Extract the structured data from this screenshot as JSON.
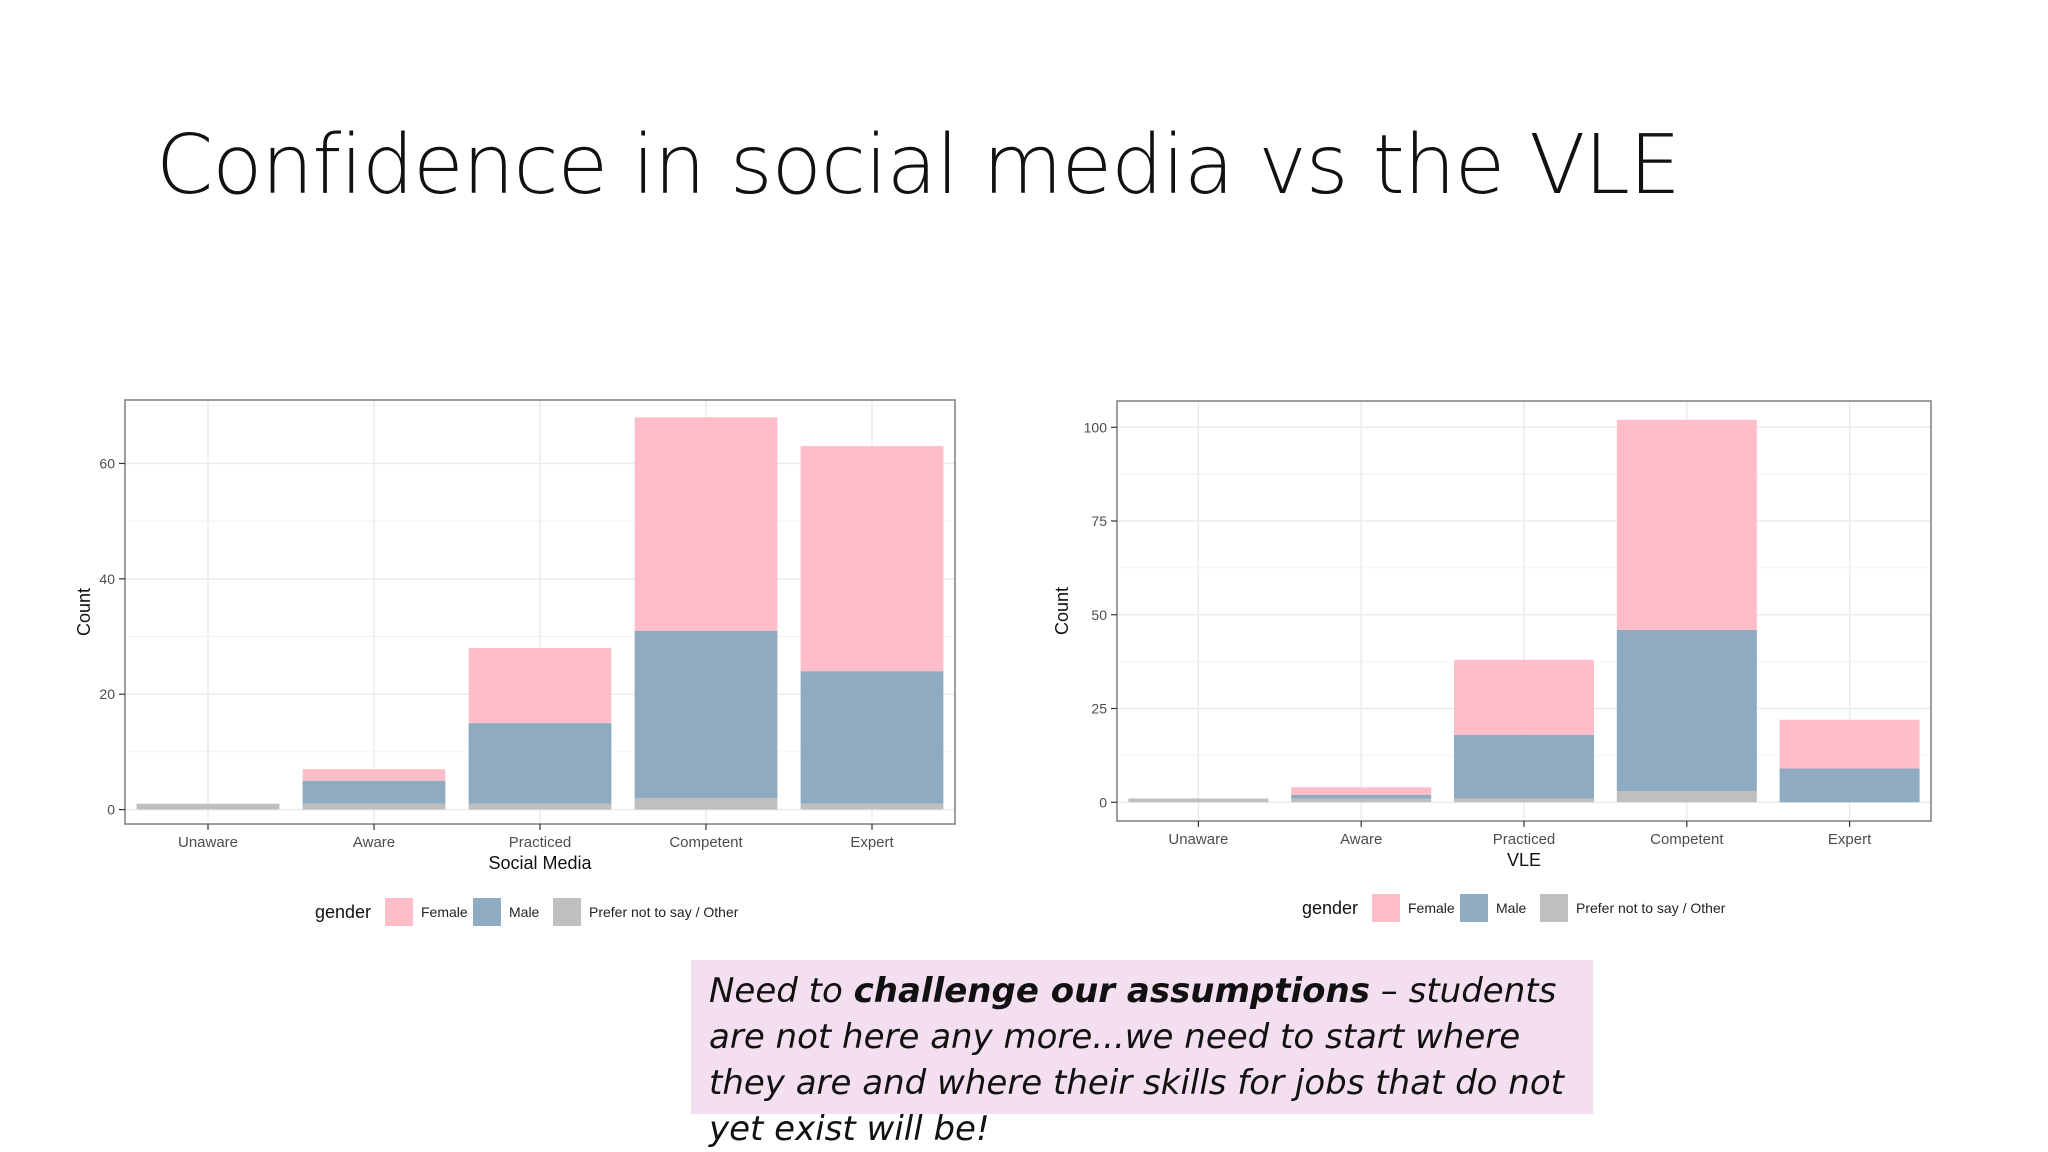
{
  "slide": {
    "title": "Confidence in social media vs the VLE",
    "callout": {
      "part1": "Need to ",
      "bold": "challenge our assumptions",
      "part2": " – students are not here any more...we need to start where they are and where their skills for jobs that do not yet exist will be!"
    }
  },
  "colors": {
    "female": "#ffbdc9",
    "male": "#8fabc2",
    "other": "#bfbfbf",
    "panel_border": "#7f7f7f",
    "grid": "#ebebeb"
  },
  "legend": {
    "title": "gender",
    "entries": [
      "Female",
      "Male",
      "Prefer not to say / Other"
    ]
  },
  "chart_data": [
    {
      "type": "bar",
      "stacked": true,
      "xlabel": "Social Media",
      "ylabel": "Count",
      "categories": [
        "Unaware",
        "Aware",
        "Practiced",
        "Competent",
        "Expert"
      ],
      "ylim": [
        -2.5,
        71
      ],
      "yticks": [
        0,
        20,
        40,
        60
      ],
      "series": [
        {
          "name": "Prefer not to say / Other",
          "values": [
            1,
            1,
            1,
            2,
            1
          ]
        },
        {
          "name": "Male",
          "values": [
            0,
            4,
            14,
            29,
            23
          ]
        },
        {
          "name": "Female",
          "values": [
            0,
            2,
            13,
            37,
            39
          ]
        }
      ],
      "grid": true,
      "legend_position": "bottom"
    },
    {
      "type": "bar",
      "stacked": true,
      "xlabel": "VLE",
      "ylabel": "Count",
      "categories": [
        "Unaware",
        "Aware",
        "Practiced",
        "Competent",
        "Expert"
      ],
      "ylim": [
        -5,
        107
      ],
      "yticks": [
        0,
        25,
        50,
        75,
        100
      ],
      "series": [
        {
          "name": "Prefer not to say / Other",
          "values": [
            1,
            1,
            1,
            3,
            0
          ]
        },
        {
          "name": "Male",
          "values": [
            0,
            1,
            17,
            43,
            9
          ]
        },
        {
          "name": "Female",
          "values": [
            0,
            2,
            20,
            56,
            13
          ]
        }
      ],
      "grid": true,
      "legend_position": "bottom"
    }
  ]
}
